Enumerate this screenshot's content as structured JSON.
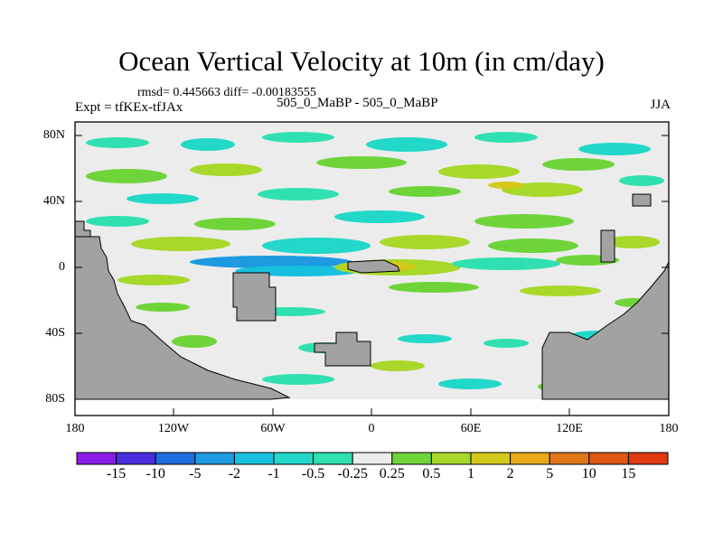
{
  "title": "Ocean Vertical Velocity at 10m (in cm/day)",
  "stats": "rmsd= 0.445663 diff= -0.00183555",
  "experiment": "Expt = tfKEx-tfJAx",
  "case_label": "505_0_MaBP - 505_0_MaBP",
  "season": "JJA",
  "y_ticks": [
    "80N",
    "40N",
    "0",
    "40S",
    "80S"
  ],
  "x_ticks": [
    "180",
    "120W",
    "60W",
    "0",
    "60E",
    "120E",
    "180"
  ],
  "colorbar": {
    "labels": [
      "-15",
      "-10",
      "-5",
      "-2",
      "-1",
      "-0.5",
      "-0.25",
      "0.25",
      "0.5",
      "1",
      "2",
      "5",
      "10",
      "15"
    ],
    "colors": [
      "#8a1ee8",
      "#4a2fe0",
      "#1f6fe0",
      "#1d9ae0",
      "#18c0e0",
      "#22d8c8",
      "#30e0b0",
      "#ececec",
      "#6fd43a",
      "#a8d82a",
      "#d4c81a",
      "#e8a818",
      "#e07818",
      "#e03a10"
    ]
  },
  "colors": {
    "land": "#a2a2a2",
    "ocean_zero": "#ececec"
  }
}
